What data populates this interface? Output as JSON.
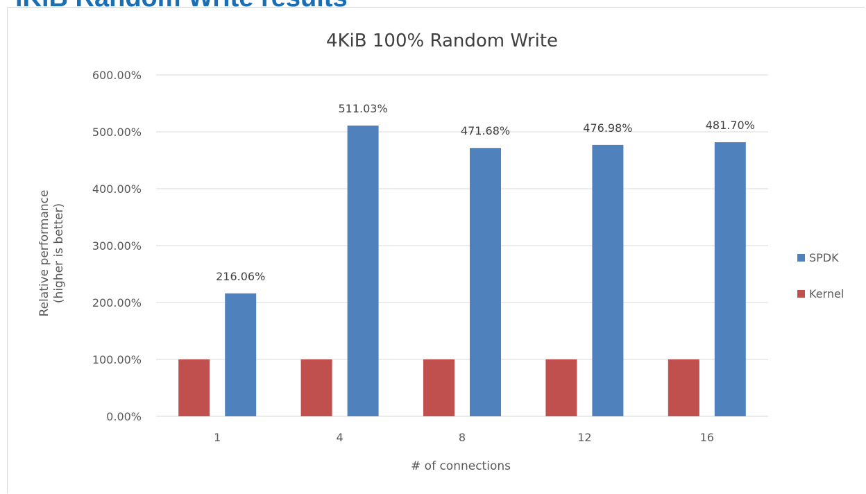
{
  "page": {
    "heading": "iKiB Random Write results"
  },
  "colors": {
    "kernel": "#c0504d",
    "spdk": "#4f81bd",
    "grid": "#d9d9d9",
    "text": "#595959"
  },
  "chart_data": {
    "type": "bar",
    "title": "4KiB 100% Random Write",
    "xlabel": "# of connections",
    "ylabel_lines": [
      "Relative performance",
      "(higher is better)"
    ],
    "categories": [
      "1",
      "4",
      "8",
      "12",
      "16"
    ],
    "ylim": [
      0,
      600
    ],
    "y_ticks": [
      0,
      100,
      200,
      300,
      400,
      500,
      600
    ],
    "y_tick_labels": [
      "0.00%",
      "100.00%",
      "200.00%",
      "300.00%",
      "400.00%",
      "500.00%",
      "600.00%"
    ],
    "grid": true,
    "legend_position": "right",
    "series": [
      {
        "name": "Kernel",
        "color": "#c0504d",
        "values": [
          100,
          100,
          100,
          100,
          100
        ],
        "labels": [
          "",
          "",
          "",
          "",
          ""
        ]
      },
      {
        "name": "SPDK",
        "color": "#4f81bd",
        "values": [
          216.06,
          511.03,
          471.68,
          476.98,
          481.7
        ],
        "labels": [
          "216.06%",
          "511.03%",
          "471.68%",
          "476.98%",
          "481.70%"
        ]
      }
    ]
  }
}
